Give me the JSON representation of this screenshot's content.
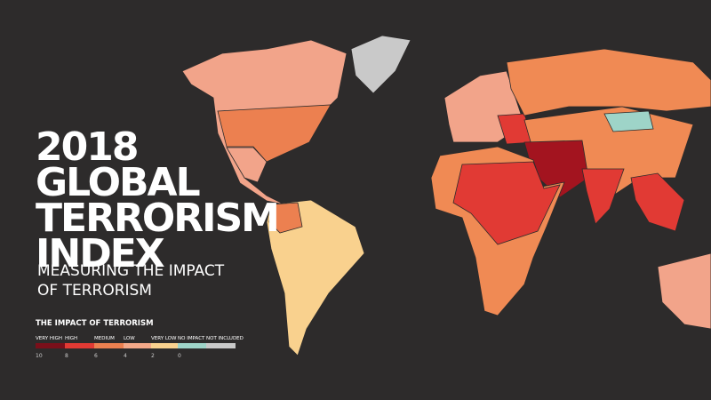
{
  "title": {
    "lines": [
      "2018",
      "GLOBAL",
      "TERRORISM",
      "INDEX"
    ]
  },
  "subtitle": {
    "lines": [
      "MEASURING THE IMPACT",
      "OF TERRORISM"
    ]
  },
  "legend": {
    "title": "THE IMPACT OF TERRORISM",
    "labels": [
      "VERY HIGH",
      "HIGH",
      "MEDIUM",
      "LOW",
      "VERY LOW",
      "NO IMPACT",
      "NOT INCLUDED"
    ],
    "scale": [
      "10",
      "8",
      "6",
      "4",
      "2",
      "0"
    ]
  }
}
